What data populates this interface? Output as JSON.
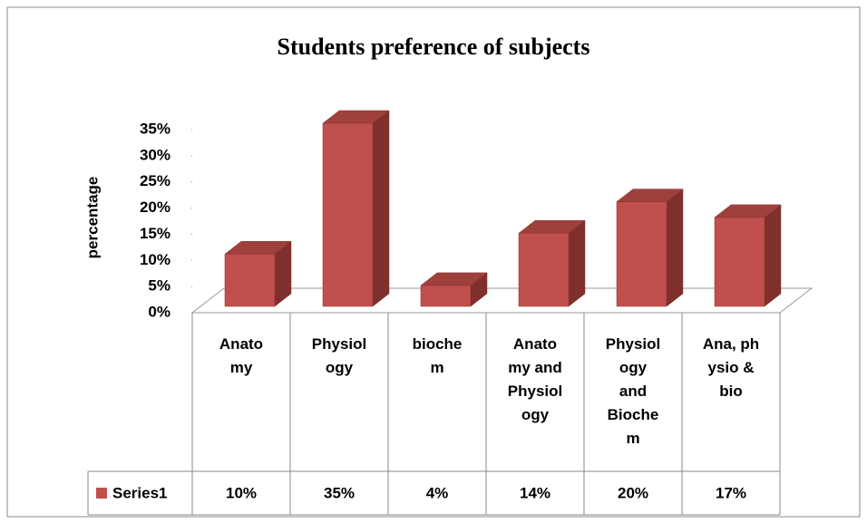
{
  "chart_data": {
    "type": "bar3d",
    "title": "Students preference of subjects",
    "y_label": "percentage",
    "categories": [
      "Anato\nmy",
      "Physiol\nogy",
      "bioche\nm",
      "Anato\nmy and\nPhysiol\nogy",
      "Physiol\nogy\nand\nBioche\nm",
      "Ana, ph\nysio &\nbio"
    ],
    "series": [
      {
        "name": "Series1",
        "color": "#c0504d",
        "values": [
          10,
          35,
          4,
          14,
          20,
          17
        ],
        "value_labels": [
          "10%",
          "35%",
          "4%",
          "14%",
          "20%",
          "17%"
        ]
      }
    ],
    "ylim": [
      0,
      35
    ],
    "yticks": [
      {
        "value": 0,
        "label": "0%"
      },
      {
        "value": 5,
        "label": "5%"
      },
      {
        "value": 10,
        "label": "10%"
      },
      {
        "value": 15,
        "label": "15%"
      },
      {
        "value": 20,
        "label": "20%"
      },
      {
        "value": 25,
        "label": "25%"
      },
      {
        "value": 30,
        "label": "30%"
      },
      {
        "value": 35,
        "label": "35%"
      }
    ],
    "legend": "table"
  }
}
